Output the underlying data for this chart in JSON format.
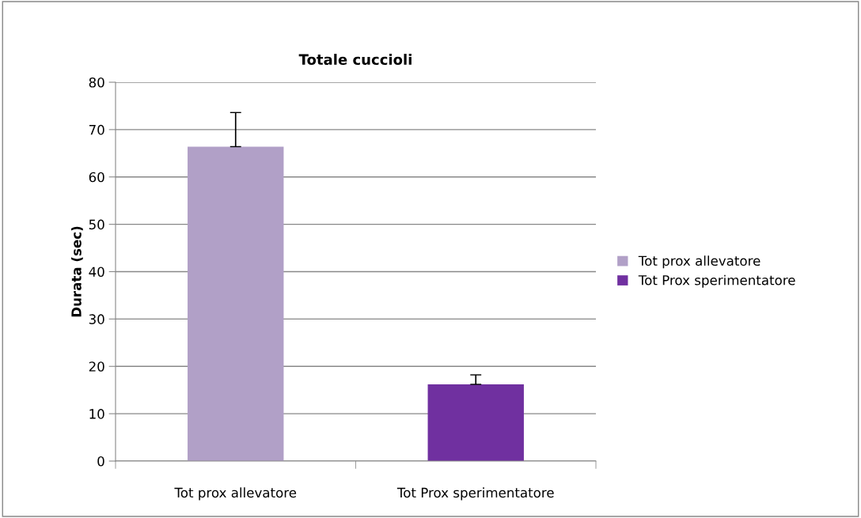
{
  "chart_data": {
    "type": "bar",
    "title": "Totale cuccioli",
    "ylabel": "Durata (sec)",
    "categories": [
      "Tot prox allevatore",
      "Tot Prox sperimentatore"
    ],
    "series": [
      {
        "name": "Tot prox allevatore",
        "color": "#b1a0c7",
        "values": [
          66.4,
          null
        ],
        "errors": [
          [
            66.4,
            73.6
          ],
          null
        ]
      },
      {
        "name": "Tot Prox sperimentatore",
        "color": "#7030a0",
        "values": [
          null,
          16.2
        ],
        "errors": [
          null,
          [
            16.2,
            18.2
          ]
        ]
      }
    ],
    "ylim": [
      0,
      80
    ],
    "yticks": [
      0,
      10,
      20,
      30,
      40,
      50,
      60,
      70,
      80
    ],
    "grid": "y",
    "legend": "right"
  }
}
